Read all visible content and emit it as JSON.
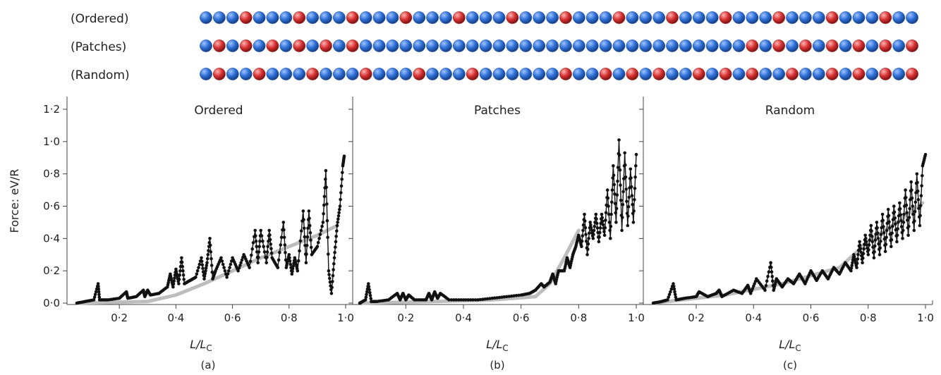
{
  "sequences": {
    "rows": [
      {
        "label": "(Ordered)",
        "pattern": "BBBRBBBRBBBRBBBRBBBRBBBRBBBRBBBRBBBRBBBRBBBRBBBRBBBRBB"
      },
      {
        "label": "(Patches)",
        "pattern": "BRBRBRBRBRBRBBBBBBBBBBBBBBBBBBBBBBBBBBBBBRBRBRBRBRBRBR"
      },
      {
        "label": "(Random)",
        "pattern": "BRBBRBBBRBBBRBBBRBBBRBBBBBBRBBRBRBRBBRBRBRBBRBBRBRBRBR"
      }
    ],
    "colors": {
      "B": "#2d6fd6",
      "R": "#d63030"
    }
  },
  "chart_data": [
    {
      "type": "line",
      "panel": "(a)",
      "title": "Ordered",
      "xlabel": "L/L_C",
      "ylabel": "Force: eV/R",
      "xlim": [
        0.04,
        1.0
      ],
      "ylim": [
        0,
        1.2
      ],
      "xticks": [
        "0·2",
        "0·4",
        "0·6",
        "0·8",
        "1·0"
      ],
      "yticks": [
        "0·0",
        "0·2",
        "0·4",
        "0·6",
        "0·8",
        "1·0",
        "1·2"
      ],
      "trend": {
        "x": [
          0.05,
          0.3,
          0.4,
          0.5,
          0.6,
          0.7,
          0.8,
          0.9,
          0.97
        ],
        "y": [
          0.0,
          0.01,
          0.05,
          0.12,
          0.2,
          0.28,
          0.35,
          0.42,
          0.48
        ]
      },
      "series_x": [
        0.05,
        0.08,
        0.11,
        0.125,
        0.13,
        0.16,
        0.2,
        0.225,
        0.23,
        0.26,
        0.285,
        0.29,
        0.3,
        0.31,
        0.34,
        0.37,
        0.38,
        0.39,
        0.4,
        0.41,
        0.42,
        0.43,
        0.45,
        0.47,
        0.49,
        0.5,
        0.51,
        0.52,
        0.53,
        0.54,
        0.56,
        0.58,
        0.6,
        0.62,
        0.64,
        0.66,
        0.68,
        0.69,
        0.7,
        0.72,
        0.73,
        0.74,
        0.76,
        0.78,
        0.79,
        0.8,
        0.81,
        0.82,
        0.83,
        0.85,
        0.86,
        0.87,
        0.88,
        0.9,
        0.92,
        0.93,
        0.94,
        0.95,
        0.96,
        0.97,
        0.98,
        0.99,
        0.995
      ],
      "series_y": [
        0.0,
        0.01,
        0.02,
        0.12,
        0.02,
        0.02,
        0.03,
        0.07,
        0.03,
        0.04,
        0.08,
        0.04,
        0.08,
        0.05,
        0.06,
        0.1,
        0.18,
        0.1,
        0.21,
        0.12,
        0.28,
        0.12,
        0.14,
        0.16,
        0.28,
        0.15,
        0.25,
        0.4,
        0.15,
        0.2,
        0.28,
        0.16,
        0.28,
        0.2,
        0.3,
        0.22,
        0.45,
        0.25,
        0.45,
        0.25,
        0.45,
        0.28,
        0.22,
        0.5,
        0.22,
        0.3,
        0.18,
        0.28,
        0.2,
        0.57,
        0.25,
        0.57,
        0.3,
        0.35,
        0.5,
        0.82,
        0.2,
        0.06,
        0.28,
        0.48,
        0.6,
        0.85,
        0.91
      ]
    },
    {
      "type": "line",
      "panel": "(b)",
      "title": "Patches",
      "xlabel": "L/L_C",
      "ylabel": "",
      "xlim": [
        0.04,
        1.0
      ],
      "ylim": [
        0,
        1.2
      ],
      "xticks": [
        "0·2",
        "0·4",
        "0·6",
        "0·8",
        "1·0"
      ],
      "yticks": [],
      "trend": {
        "x": [
          0.05,
          0.3,
          0.5,
          0.65,
          0.7,
          0.75,
          0.8
        ],
        "y": [
          0.0,
          0.01,
          0.02,
          0.04,
          0.12,
          0.28,
          0.45
        ]
      },
      "series_x": [
        0.04,
        0.06,
        0.07,
        0.08,
        0.1,
        0.14,
        0.17,
        0.18,
        0.19,
        0.2,
        0.21,
        0.23,
        0.27,
        0.28,
        0.29,
        0.3,
        0.31,
        0.32,
        0.35,
        0.4,
        0.45,
        0.5,
        0.55,
        0.6,
        0.63,
        0.65,
        0.67,
        0.68,
        0.7,
        0.71,
        0.72,
        0.73,
        0.75,
        0.76,
        0.77,
        0.78,
        0.79,
        0.8,
        0.81,
        0.82,
        0.83,
        0.84,
        0.85,
        0.86,
        0.87,
        0.88,
        0.89,
        0.9,
        0.91,
        0.92,
        0.93,
        0.94,
        0.95,
        0.96,
        0.97,
        0.98,
        0.99,
        1.0
      ],
      "series_y": [
        0.0,
        0.02,
        0.12,
        0.01,
        0.01,
        0.02,
        0.06,
        0.02,
        0.06,
        0.02,
        0.05,
        0.02,
        0.02,
        0.06,
        0.02,
        0.07,
        0.03,
        0.06,
        0.02,
        0.02,
        0.02,
        0.03,
        0.04,
        0.05,
        0.06,
        0.08,
        0.12,
        0.1,
        0.13,
        0.18,
        0.12,
        0.2,
        0.2,
        0.28,
        0.22,
        0.3,
        0.35,
        0.42,
        0.35,
        0.55,
        0.3,
        0.5,
        0.4,
        0.55,
        0.38,
        0.55,
        0.42,
        0.7,
        0.4,
        0.85,
        0.5,
        1.01,
        0.45,
        0.93,
        0.48,
        0.83,
        0.5,
        0.92
      ]
    },
    {
      "type": "line",
      "panel": "(c)",
      "title": "Random",
      "xlabel": "L/L_C",
      "ylabel": "",
      "xlim": [
        0.04,
        1.0
      ],
      "ylim": [
        0,
        1.2
      ],
      "xticks": [
        "0·2",
        "0·4",
        "0·6",
        "0·8",
        "1·0"
      ],
      "yticks": [],
      "trend": {
        "x": [
          0.05,
          0.3,
          0.5,
          0.7,
          0.8,
          0.9,
          0.99
        ],
        "y": [
          0.0,
          0.05,
          0.12,
          0.22,
          0.38,
          0.5,
          0.62
        ]
      },
      "series_x": [
        0.05,
        0.08,
        0.1,
        0.12,
        0.13,
        0.16,
        0.2,
        0.21,
        0.24,
        0.27,
        0.28,
        0.29,
        0.33,
        0.36,
        0.38,
        0.39,
        0.41,
        0.44,
        0.46,
        0.47,
        0.48,
        0.5,
        0.52,
        0.54,
        0.56,
        0.58,
        0.6,
        0.62,
        0.64,
        0.66,
        0.68,
        0.7,
        0.72,
        0.74,
        0.75,
        0.76,
        0.77,
        0.78,
        0.79,
        0.8,
        0.81,
        0.82,
        0.83,
        0.84,
        0.85,
        0.86,
        0.87,
        0.88,
        0.89,
        0.9,
        0.91,
        0.92,
        0.93,
        0.94,
        0.95,
        0.96,
        0.97,
        0.98,
        0.99,
        1.0
      ],
      "series_y": [
        0.0,
        0.01,
        0.02,
        0.12,
        0.02,
        0.03,
        0.04,
        0.07,
        0.04,
        0.06,
        0.08,
        0.04,
        0.08,
        0.06,
        0.11,
        0.06,
        0.15,
        0.08,
        0.25,
        0.08,
        0.15,
        0.1,
        0.15,
        0.12,
        0.18,
        0.12,
        0.2,
        0.14,
        0.2,
        0.15,
        0.22,
        0.18,
        0.25,
        0.2,
        0.3,
        0.22,
        0.38,
        0.25,
        0.42,
        0.3,
        0.48,
        0.28,
        0.5,
        0.3,
        0.55,
        0.32,
        0.58,
        0.35,
        0.6,
        0.38,
        0.62,
        0.4,
        0.7,
        0.42,
        0.75,
        0.45,
        0.8,
        0.48,
        0.85,
        0.92
      ]
    }
  ],
  "axis_label_main": "L/L",
  "axis_label_sub": "C",
  "y_axis_title": "Force: eV/R"
}
